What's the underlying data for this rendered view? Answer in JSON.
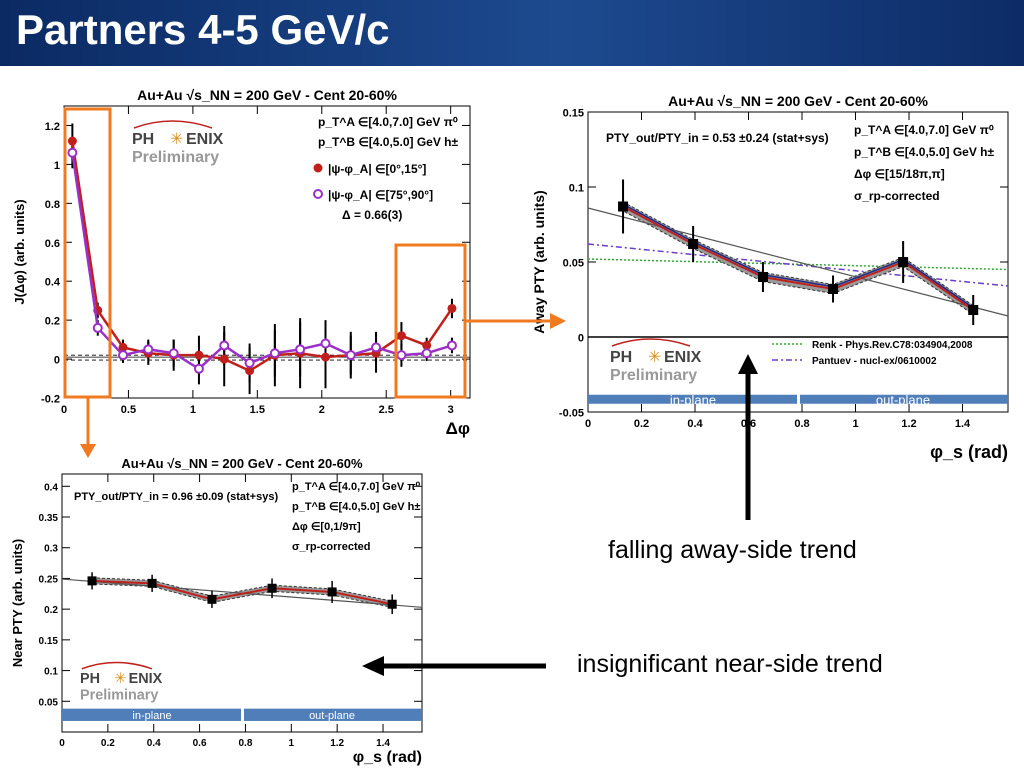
{
  "slide": {
    "title": "Partners 4-5 GeV/c"
  },
  "captions": {
    "away": "falling away-side trend",
    "near": "insignificant near-side trend"
  },
  "colors": {
    "title_bg": "#1d4a8f",
    "highlight": "#f07a20",
    "red": "#c0201c",
    "purple": "#9b30c8",
    "band": "#4f7eb8",
    "renk": "#33aa33",
    "pantuev": "#6a3fc8"
  },
  "chart_data": [
    {
      "id": "corr",
      "type": "scatter",
      "title": "Au+Au √s_NN = 200 GeV - Cent 20-60%",
      "ylabel": "J(Δφ) (arb. units)",
      "xlabel": "Δφ",
      "xlim": [
        0,
        3.15
      ],
      "ylim": [
        -0.2,
        1.3
      ],
      "xticks": [
        0,
        0.5,
        1,
        1.5,
        2,
        2.5,
        3
      ],
      "xticklabels": [
        "0",
        "0.5",
        "1",
        "1.5",
        "2",
        "2.5",
        "3"
      ],
      "yticks": [
        -0.2,
        0,
        0.2,
        0.4,
        0.6,
        0.8,
        1,
        1.2
      ],
      "yticklabels": [
        "-0.2",
        "0",
        "0.2",
        "0.4",
        "0.6",
        "0.8",
        "1",
        "1.2"
      ],
      "logo": {
        "top": "PH",
        "bottom": "ENIX",
        "sub": "Preliminary"
      },
      "annotations": [
        "p_T^A ∈[4.0,7.0] GeV π⁰",
        "p_T^B ∈[4.0,5.0] GeV h±",
        "Δ = 0.66(3)"
      ],
      "legend": [
        {
          "label": "|ψ-φ_A| ∈[0°,15°]",
          "color": "#c0201c",
          "marker": "filled-circle"
        },
        {
          "label": "|ψ-φ_A| ∈[75°,90°]",
          "color": "#9b30c8",
          "marker": "open-circle"
        }
      ],
      "series": [
        {
          "name": "|ψ-φ_A| ∈[0°,15°]",
          "x": [
            0.065,
            0.262,
            0.458,
            0.654,
            0.851,
            1.047,
            1.243,
            1.44,
            1.636,
            1.832,
            2.029,
            2.225,
            2.421,
            2.618,
            2.814,
            3.01
          ],
          "y": [
            1.12,
            0.25,
            0.06,
            0.03,
            0.02,
            0.02,
            0.0,
            -0.06,
            0.02,
            0.03,
            0.01,
            0.02,
            0.03,
            0.12,
            0.07,
            0.26
          ],
          "err": [
            0.09,
            0.04,
            0.04,
            0.06,
            0.08,
            0.1,
            0.14,
            0.12,
            0.16,
            0.18,
            0.16,
            0.12,
            0.1,
            0.07,
            0.04,
            0.05
          ]
        },
        {
          "name": "|ψ-φ_A| ∈[75°,90°]",
          "x": [
            0.065,
            0.262,
            0.458,
            0.654,
            0.851,
            1.047,
            1.243,
            1.44,
            1.636,
            1.832,
            2.029,
            2.225,
            2.421,
            2.618,
            2.814,
            3.01
          ],
          "y": [
            1.06,
            0.16,
            0.02,
            0.05,
            0.03,
            -0.05,
            0.07,
            -0.02,
            0.03,
            0.05,
            0.08,
            0.02,
            0.06,
            0.02,
            0.03,
            0.07
          ],
          "err": [
            0.08,
            0.04,
            0.04,
            0.05,
            0.07,
            0.08,
            0.1,
            0.1,
            0.12,
            0.14,
            0.12,
            0.1,
            0.08,
            0.06,
            0.04,
            0.04
          ]
        }
      ]
    },
    {
      "id": "away",
      "type": "line",
      "title": "Au+Au √s_NN = 200 GeV - Cent 20-60%",
      "ylabel": "Away PTY (arb. units)",
      "xlabel": "φ_s (rad)",
      "xlim": [
        0,
        1.57
      ],
      "ylim": [
        -0.05,
        0.15
      ],
      "xticks": [
        0,
        0.2,
        0.4,
        0.6,
        0.8,
        1,
        1.2,
        1.4
      ],
      "xticklabels": [
        "0",
        "0.2",
        "0.4",
        "0.6",
        "0.8",
        "1",
        "1.2",
        "1.4"
      ],
      "yticks": [
        -0.05,
        0,
        0.05,
        0.1,
        0.15
      ],
      "yticklabels": [
        "-0.05",
        "0",
        "0.05",
        "0.1",
        "0.15"
      ],
      "ratio_text": "PTY_out/PTY_in = 0.53 ±0.24 (stat+sys)",
      "annotations": [
        "p_T^A ∈[4.0,7.0] GeV π⁰",
        "p_T^B ∈[4.0,5.0] GeV h±",
        "Δφ ∈[15/18π,π]",
        "σ_rp-corrected"
      ],
      "legend": [
        {
          "label": "Renk - Phys.Rev.C78:034904,2008",
          "color": "#33aa33",
          "style": "dotted"
        },
        {
          "label": "Pantuev - nucl-ex/0610002",
          "color": "#6a3fc8",
          "style": "dashdot"
        }
      ],
      "band_labels": [
        "in-plane",
        "out-plane"
      ],
      "logo": {
        "top": "PH",
        "bottom": "ENIX",
        "sub": "Preliminary"
      },
      "series": [
        {
          "name": "data",
          "x": [
            0.131,
            0.393,
            0.654,
            0.916,
            1.178,
            1.44
          ],
          "y": [
            0.087,
            0.062,
            0.04,
            0.032,
            0.05,
            0.018
          ],
          "err": [
            0.018,
            0.012,
            0.01,
            0.009,
            0.014,
            0.01
          ]
        }
      ],
      "fit": {
        "x": [
          0,
          1.57
        ],
        "y": [
          0.086,
          0.014
        ]
      },
      "renk": {
        "x": [
          0,
          1.57
        ],
        "y": [
          0.052,
          0.045
        ]
      },
      "pantuev": {
        "x": [
          0,
          1.57
        ],
        "y": [
          0.062,
          0.034
        ]
      }
    },
    {
      "id": "near",
      "type": "line",
      "title": "Au+Au √s_NN = 200 GeV - Cent 20-60%",
      "ylabel": "Near PTY (arb. units)",
      "xlabel": "φ_s (rad)",
      "xlim": [
        0,
        1.57
      ],
      "ylim": [
        0,
        0.42
      ],
      "xticks": [
        0,
        0.2,
        0.4,
        0.6,
        0.8,
        1,
        1.2,
        1.4
      ],
      "xticklabels": [
        "0",
        "0.2",
        "0.4",
        "0.6",
        "0.8",
        "1",
        "1.2",
        "1.4"
      ],
      "yticks": [
        0.05,
        0.1,
        0.15,
        0.2,
        0.25,
        0.3,
        0.35,
        0.4
      ],
      "yticklabels": [
        "0.05",
        "0.1",
        "0.15",
        "0.2",
        "0.25",
        "0.3",
        "0.35",
        "0.4"
      ],
      "ratio_text": "PTY_out/PTY_in = 0.96 ±0.09 (stat+sys)",
      "annotations": [
        "p_T^A ∈[4.0,7.0] GeV π⁰",
        "p_T^B ∈[4.0,5.0] GeV h±",
        "Δφ ∈[0,1/9π]",
        "σ_rp-corrected"
      ],
      "band_labels": [
        "in-plane",
        "out-plane"
      ],
      "logo": {
        "top": "PH",
        "bottom": "ENIX",
        "sub": "Preliminary"
      },
      "series": [
        {
          "name": "data",
          "x": [
            0.131,
            0.393,
            0.654,
            0.916,
            1.178,
            1.44
          ],
          "y": [
            0.246,
            0.242,
            0.216,
            0.234,
            0.228,
            0.208
          ],
          "err": [
            0.014,
            0.014,
            0.014,
            0.016,
            0.018,
            0.016
          ]
        }
      ],
      "fit": {
        "x": [
          0,
          1.57
        ],
        "y": [
          0.249,
          0.203
        ]
      }
    }
  ]
}
